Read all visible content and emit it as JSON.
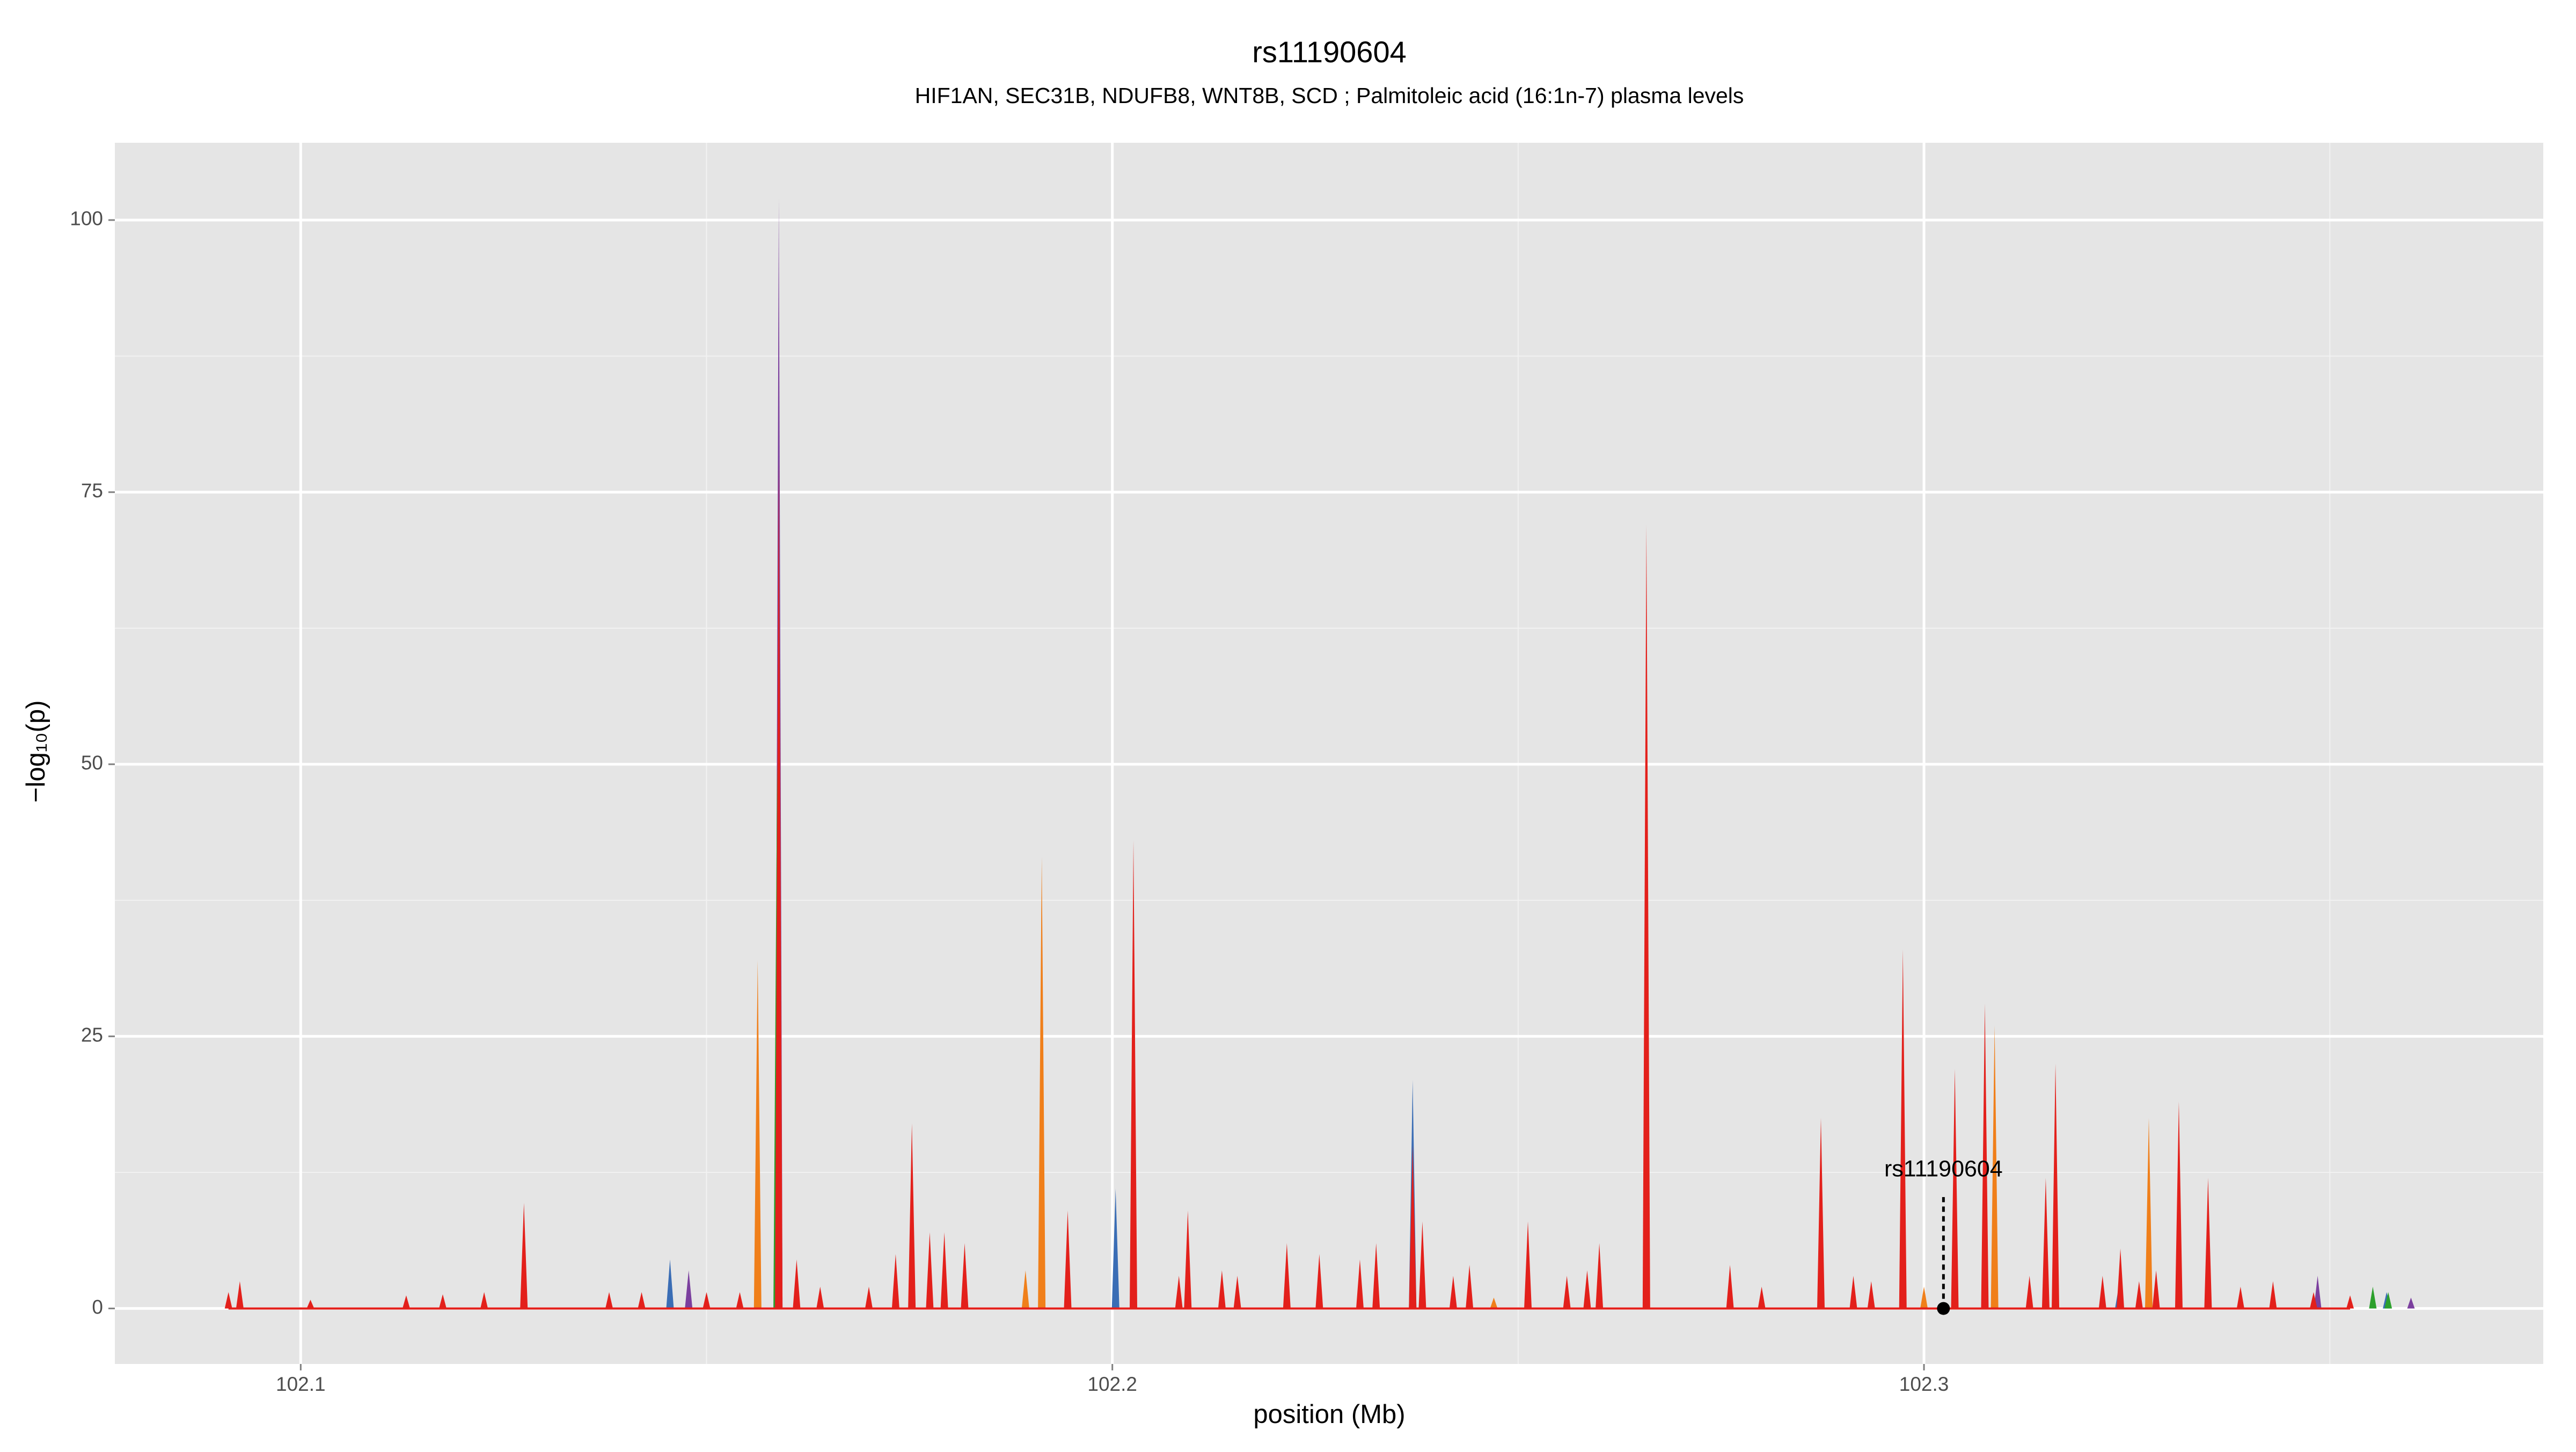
{
  "chart_data": {
    "type": "spike-area",
    "title": "rs11190604",
    "subtitle": "HIF1AN, SEC31B, NDUFB8, WNT8B, SCD  ; Palmitoleic acid (16:1n-7) plasma levels",
    "x_label": "position (Mb)",
    "y_label": "−log₁₀(p)",
    "xlim": [
      102.0771,
      102.3763
    ],
    "ylim": [
      -5.1,
      107.1
    ],
    "xticks": [
      102.1,
      102.2,
      102.3
    ],
    "yticks": [
      0,
      25,
      50,
      75,
      100
    ],
    "x_minor_grid": [
      102.15,
      102.25,
      102.35
    ],
    "y_minor_grid": [
      12.5,
      37.5,
      62.5,
      87.5
    ],
    "grid": true,
    "series": [
      {
        "color": "#7b3f9e",
        "x": [
          102.1478,
          102.1589,
          102.3485,
          102.36
        ],
        "values": [
          3.5,
          102,
          3,
          1
        ]
      },
      {
        "color": "#3a6db5",
        "x": [
          102.1455,
          102.2004,
          102.237,
          102.324,
          102.357
        ],
        "values": [
          4.5,
          11,
          21,
          2,
          1.5
        ]
      },
      {
        "color": "#2ca02c",
        "x": [
          102.1587,
          102.3553,
          102.3572
        ],
        "values": [
          50,
          2,
          1.5
        ]
      },
      {
        "color": "#f07f1a",
        "x": [
          102.1563,
          102.1893,
          102.1913,
          102.2325,
          102.247,
          102.3,
          102.3087,
          102.3277
        ],
        "values": [
          32,
          3.5,
          41.5,
          4,
          1,
          2,
          26,
          17.5
        ]
      },
      {
        "color": "#e3201b",
        "x": [
          102.0911,
          102.0925,
          102.1012,
          102.113,
          102.1175,
          102.1226,
          102.1275,
          102.138,
          102.142,
          102.15,
          102.1541,
          102.1589,
          102.1611,
          102.164,
          102.17,
          102.1733,
          102.1753,
          102.1775,
          102.1793,
          102.1818,
          102.1945,
          102.2026,
          102.2082,
          102.2093,
          102.2135,
          102.2154,
          102.2215,
          102.2255,
          102.2305,
          102.2325,
          102.237,
          102.2382,
          102.242,
          102.244,
          102.2512,
          102.256,
          102.2585,
          102.26,
          102.2658,
          102.2761,
          102.28,
          102.2873,
          102.2913,
          102.2935,
          102.2974,
          102.3038,
          102.3075,
          102.313,
          102.315,
          102.3162,
          102.322,
          102.3242,
          102.3265,
          102.3286,
          102.3314,
          102.335,
          102.339,
          102.343,
          102.348,
          102.3525
        ],
        "values": [
          1.5,
          2.5,
          0.8,
          1.2,
          1.3,
          1.5,
          9.7,
          1.5,
          1.5,
          1.5,
          1.5,
          78,
          4.5,
          2,
          2,
          5,
          17,
          7,
          7,
          6,
          9,
          43,
          3,
          9,
          3.5,
          3,
          6,
          5,
          4.5,
          6,
          15,
          8,
          3,
          4,
          8,
          3,
          3.5,
          6,
          72,
          4,
          2,
          17.5,
          3,
          2.5,
          33,
          22,
          28,
          3,
          12,
          22.5,
          3,
          5.5,
          2.5,
          3.5,
          19,
          12,
          2,
          2.5,
          1.5,
          1.2
        ]
      }
    ],
    "annotations": [
      {
        "text": "rs11190604",
        "x": 102.3024,
        "y": 12.7
      }
    ]
  }
}
